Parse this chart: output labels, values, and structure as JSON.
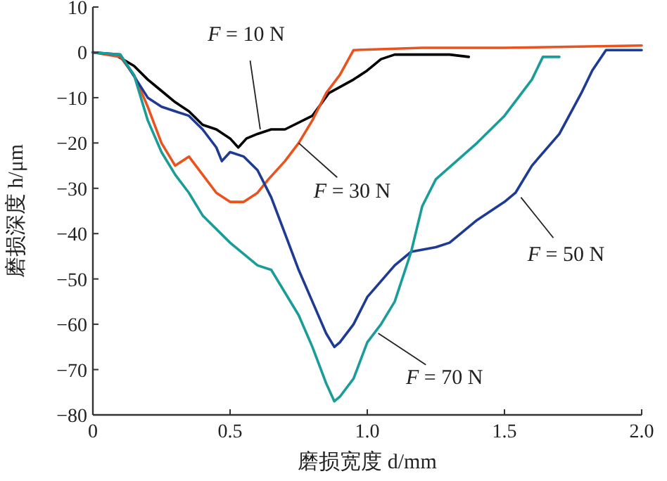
{
  "chart_data": {
    "type": "line",
    "xlabel": "磨损宽度 d/mm",
    "ylabel": "磨损深度 h/μm",
    "xlim": [
      0,
      2
    ],
    "ylim": [
      -80,
      10
    ],
    "xticks": [
      0,
      {
        "value": 0.5,
        "label": "0.5"
      },
      {
        "value": 1,
        "label": "1.0"
      },
      {
        "value": 1.5,
        "label": "1.5"
      },
      {
        "value": 2,
        "label": "2.0"
      }
    ],
    "yticks": [
      10,
      0,
      -10,
      -20,
      -30,
      -40,
      -50,
      -60,
      -70,
      -80
    ],
    "series": [
      {
        "color": "#000000",
        "x": [
          0,
          0.08,
          0.15,
          0.2,
          0.24,
          0.3,
          0.35,
          0.4,
          0.45,
          0.5,
          0.53,
          0.56,
          0.6,
          0.65,
          0.7,
          0.8,
          0.86,
          0.95,
          1.0,
          1.05,
          1.1,
          1.2,
          1.3,
          1.37
        ],
        "values": [
          0,
          -0.5,
          -3,
          -6,
          -8,
          -11,
          -13,
          -16,
          -17,
          -19,
          -21,
          -19,
          -18,
          -17,
          -17,
          -14,
          -9,
          -6,
          -4,
          -1.5,
          -0.5,
          -0.5,
          -0.5,
          -1
        ]
      },
      {
        "color": "#e8531f",
        "x": [
          0,
          0.1,
          0.15,
          0.2,
          0.25,
          0.3,
          0.35,
          0.4,
          0.45,
          0.5,
          0.55,
          0.6,
          0.64,
          0.7,
          0.75,
          0.8,
          0.85,
          0.9,
          0.95,
          1.2,
          1.5,
          2.0
        ],
        "values": [
          0,
          -1,
          -5,
          -12,
          -20,
          -25,
          -23,
          -27,
          -31,
          -33,
          -33,
          -31,
          -28,
          -24,
          -20,
          -15,
          -9,
          -5,
          0.5,
          1,
          1,
          1.5
        ]
      },
      {
        "color": "#1f3a93",
        "x": [
          0,
          0.1,
          0.2,
          0.25,
          0.3,
          0.35,
          0.4,
          0.45,
          0.47,
          0.5,
          0.55,
          0.6,
          0.65,
          0.7,
          0.75,
          0.8,
          0.85,
          0.88,
          0.9,
          0.95,
          1.0,
          1.1,
          1.16,
          1.25,
          1.3,
          1.4,
          1.5,
          1.54,
          1.6,
          1.7,
          1.78,
          1.82,
          1.87,
          2.0
        ],
        "values": [
          0,
          -0.5,
          -10,
          -12,
          -13,
          -14,
          -17,
          -21,
          -24,
          -22,
          -23,
          -26,
          -32,
          -40,
          -48,
          -55,
          -62,
          -65,
          -64,
          -60,
          -54,
          -47,
          -44,
          -43,
          -42,
          -37,
          -33,
          -31,
          -25,
          -18,
          -9,
          -4,
          0.5,
          0.5
        ]
      },
      {
        "color": "#1a9c98",
        "x": [
          0,
          0.1,
          0.15,
          0.2,
          0.25,
          0.3,
          0.35,
          0.4,
          0.5,
          0.6,
          0.65,
          0.7,
          0.75,
          0.8,
          0.85,
          0.88,
          0.9,
          0.95,
          1.0,
          1.05,
          1.1,
          1.16,
          1.2,
          1.25,
          1.4,
          1.5,
          1.6,
          1.64,
          1.7
        ],
        "values": [
          0,
          -0.5,
          -5,
          -15,
          -22,
          -27,
          -31,
          -36,
          -42,
          -47,
          -48,
          -53,
          -58,
          -65,
          -73,
          -77,
          -76,
          -72,
          -64,
          -60,
          -55,
          -44,
          -34,
          -28,
          -20,
          -14,
          -6,
          -1,
          -1
        ]
      }
    ],
    "annotations": [
      {
        "text": "F = 10 N",
        "x": 0.61,
        "y": -17
      },
      {
        "text": "F = 30 N",
        "x": 0.75,
        "y": -20
      },
      {
        "text": "F = 50 N",
        "x": 1.56,
        "y": -32
      },
      {
        "text": "F = 70 N",
        "x": 1.04,
        "y": -62
      }
    ]
  }
}
